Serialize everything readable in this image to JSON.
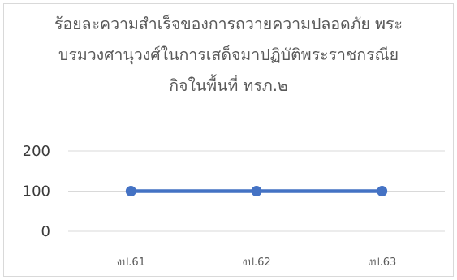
{
  "chart_data": {
    "type": "line",
    "title_lines": [
      "ร้อยละความสำเร็จของการถวายความปลอดภัย พระ",
      "บรมวงศานุวงศ์ในการเสด็จมาปฏิบัติพระราชกรณีย",
      "กิจในพื้นที่ ทรภ.๒"
    ],
    "categories": [
      "งป.61",
      "งป.62",
      "งป.63"
    ],
    "series": [
      {
        "values": [
          100,
          100,
          100
        ],
        "color": "#4472c4"
      }
    ],
    "yticks": [
      0,
      100,
      200
    ],
    "ylim": [
      0,
      200
    ],
    "grid": true,
    "legend": "none",
    "colors": {
      "grid": "#d9d9d9",
      "line": "#4472c4",
      "text": "#595959"
    }
  }
}
